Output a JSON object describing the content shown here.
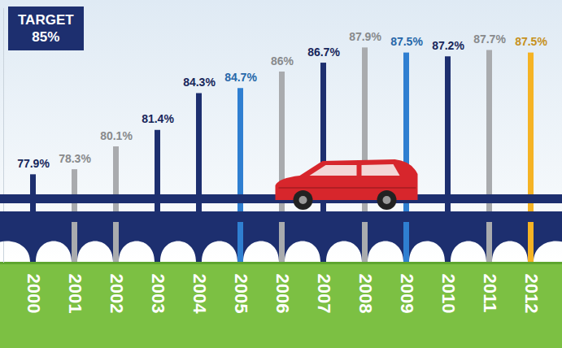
{
  "chart_data": {
    "type": "bar",
    "categories": [
      "2000",
      "2001",
      "2002",
      "2003",
      "2004",
      "2005",
      "2006",
      "2007",
      "2008",
      "2009",
      "2010",
      "2011",
      "2012"
    ],
    "values": [
      77.9,
      78.3,
      80.1,
      81.4,
      84.3,
      84.7,
      86,
      86.7,
      87.9,
      87.5,
      87.2,
      87.7,
      87.5
    ],
    "value_labels": [
      "77.9%",
      "78.3%",
      "80.1%",
      "81.4%",
      "84.3%",
      "84.7%",
      "86%",
      "86.7%",
      "87.9%",
      "87.5%",
      "87.2%",
      "87.7%",
      "87.5%"
    ],
    "colors": [
      "#1d2f6f",
      "#a9abae",
      "#a9abae",
      "#1d2f6f",
      "#1d2f6f",
      "#2f7fd1",
      "#a9abae",
      "#1d2f6f",
      "#a9abae",
      "#2f7fd1",
      "#1d2f6f",
      "#a9abae",
      "#f5b324"
    ],
    "data_labels": true,
    "ylim": [
      71,
      91
    ],
    "yticks": [],
    "tick_labels": "x",
    "annotations": [
      "TARGET",
      "85%"
    ]
  }
}
